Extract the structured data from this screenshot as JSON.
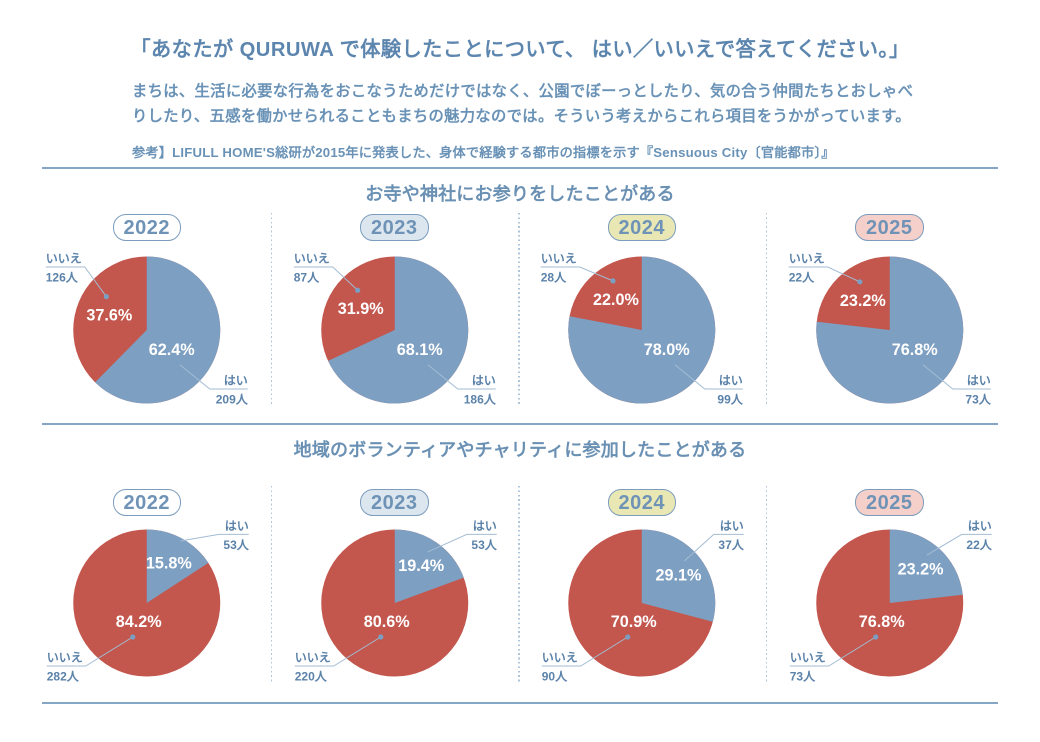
{
  "page": {
    "background": "#ffffff",
    "title": "「あなたが QURUWA で体験したことについて、 はい／いいえで答えてください。」",
    "description_lines": [
      "まちは、生活に必要な行為をおこなうためだけではなく、公園でぼーっとしたり、気の合う仲間たちとおしゃべ",
      "りしたり、五感を働かせられることもまちの魅力なのでは。そういう考えからこれら項目をうかがっています。"
    ],
    "reference_note": "参考】LIFULL HOME'S総研が2015年に発表した、身体で経験する都市の指標を示す『Sensuous City〔官能都市〕』"
  },
  "answer_labels": {
    "yes": "はい",
    "no": "いいえ"
  },
  "count_suffix": "人",
  "colors": {
    "yes_slice": "#7d9fc2",
    "no_slice": "#c3564d",
    "pct_text": "#ffffff",
    "callout_text": "#5b82a9",
    "leader_line": "#a3bcd4",
    "anchor_dot": "#7b9fc2",
    "heading_text": "#5d86af",
    "body_text": "#6992b6",
    "section_title_text": "#6a90b3",
    "rule_line": "#84a7c5",
    "separator_dots": "#b0c4d8",
    "badge_border": "#7b9cbd",
    "badge_text": "#6f93b6"
  },
  "years": [
    {
      "label": "2022",
      "badge_fill": "#ffffff"
    },
    {
      "label": "2023",
      "badge_fill": "#dce6ef"
    },
    {
      "label": "2024",
      "badge_fill": "#e9e8b5"
    },
    {
      "label": "2025",
      "badge_fill": "#f5cfc9"
    }
  ],
  "chart_data": [
    {
      "type": "pie",
      "title": "お寺や神社にお参りをしたことがある",
      "categories": [
        "2022",
        "2023",
        "2024",
        "2025"
      ],
      "series": [
        {
          "name": "はい",
          "key": "yes",
          "values_pct": [
            62.4,
            68.1,
            78.0,
            76.8
          ],
          "counts": [
            209,
            186,
            99,
            73
          ]
        },
        {
          "name": "いいえ",
          "key": "no",
          "values_pct": [
            37.6,
            31.9,
            22.0,
            23.2
          ],
          "counts": [
            126,
            87,
            28,
            22
          ]
        }
      ]
    },
    {
      "type": "pie",
      "title": "地域のボランティアやチャリティに参加したことがある",
      "categories": [
        "2022",
        "2023",
        "2024",
        "2025"
      ],
      "series": [
        {
          "name": "はい",
          "key": "yes",
          "values_pct": [
            15.8,
            19.4,
            29.1,
            23.2
          ],
          "counts": [
            53,
            53,
            37,
            22
          ]
        },
        {
          "name": "いいえ",
          "key": "no",
          "values_pct": [
            84.2,
            80.6,
            70.9,
            76.8
          ],
          "counts": [
            282,
            220,
            90,
            73
          ]
        }
      ]
    }
  ]
}
